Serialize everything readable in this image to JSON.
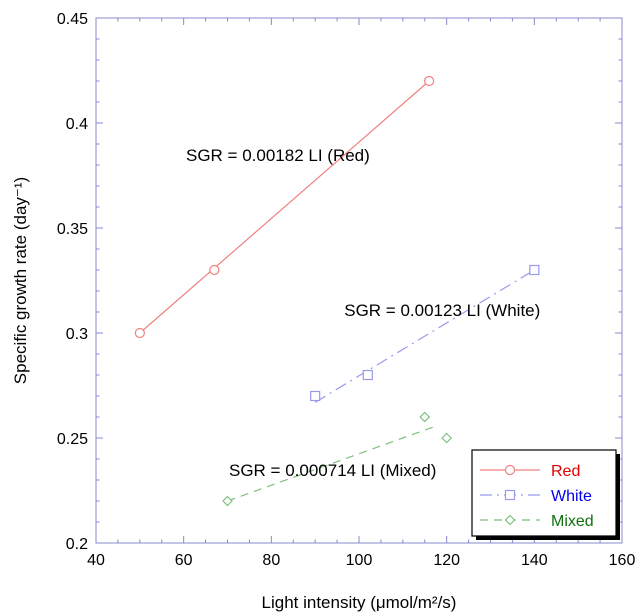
{
  "chart_data": {
    "type": "scatter",
    "title": "",
    "xlabel": "Light intensity (μmol/m²/s)",
    "ylabel": "Specific growth rate (day⁻¹)",
    "xlim": [
      40,
      160
    ],
    "ylim": [
      0.2,
      0.45
    ],
    "xticks": [
      "40",
      "60",
      "80",
      "100",
      "120",
      "140",
      "160"
    ],
    "yticks": [
      "0.2",
      "0.25",
      "0.3",
      "0.35",
      "0.4",
      "0.45"
    ],
    "grid": false,
    "legend_position": "bottom-right",
    "series": [
      {
        "name": "Red",
        "color": "#f08080",
        "label_color": "#e00000",
        "marker": "circle",
        "line_style": "solid",
        "points": [
          {
            "x": 50,
            "y": 0.3
          },
          {
            "x": 67,
            "y": 0.33
          },
          {
            "x": 116,
            "y": 0.42
          }
        ],
        "fit_line": [
          {
            "x": 50,
            "y": 0.3
          },
          {
            "x": 116,
            "y": 0.42
          }
        ]
      },
      {
        "name": "White",
        "color": "#9999ee",
        "label_color": "#0000ee",
        "marker": "square",
        "line_style": "dash-dot",
        "points": [
          {
            "x": 90,
            "y": 0.27
          },
          {
            "x": 102,
            "y": 0.28
          },
          {
            "x": 140,
            "y": 0.33
          }
        ],
        "fit_line": [
          {
            "x": 90,
            "y": 0.267
          },
          {
            "x": 140,
            "y": 0.33
          }
        ]
      },
      {
        "name": "Mixed",
        "color": "#7fbf7f",
        "label_color": "#107010",
        "marker": "diamond",
        "line_style": "dashed",
        "points": [
          {
            "x": 70,
            "y": 0.22
          },
          {
            "x": 115,
            "y": 0.26
          },
          {
            "x": 120,
            "y": 0.25
          }
        ],
        "fit_line": [
          {
            "x": 70,
            "y": 0.22
          },
          {
            "x": 118,
            "y": 0.256
          }
        ]
      }
    ],
    "annotations": [
      {
        "text": "SGR = 0.00182 LI (Red)",
        "x": 81.5,
        "y": 0.382
      },
      {
        "text": "SGR = 0.00123 LI (White)",
        "x": 119,
        "y": 0.308
      },
      {
        "text": "SGR = 0.000714 LI (Mixed)",
        "x": 94,
        "y": 0.232
      }
    ]
  }
}
